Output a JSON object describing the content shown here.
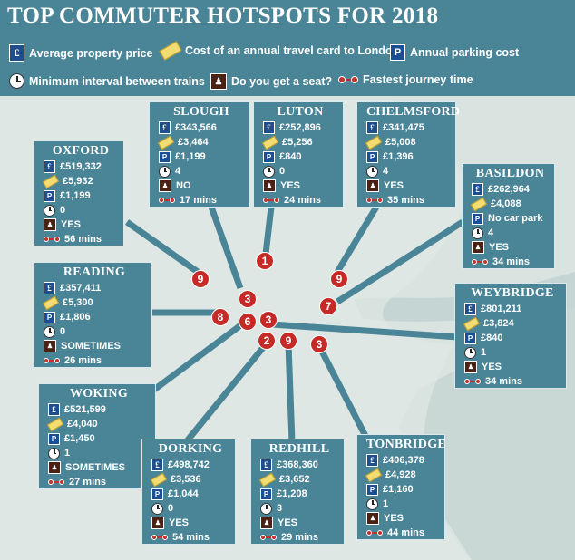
{
  "title": "TOP COMMUTER HOTSPOTS FOR 2018",
  "legend": {
    "property": "Average property price",
    "travelcard": "Cost of an annual travel card to London",
    "parking": "Annual parking cost",
    "interval": "Minimum interval between trains",
    "seat": "Do you get a seat?",
    "journey": "Fastest journey time"
  },
  "colors": {
    "panel": "#4a8597",
    "map": "#d9e4e1",
    "pin": "#c62a26"
  },
  "icons": {
    "property": "pound-icon",
    "travelcard": "ticket-icon",
    "parking": "parking-icon",
    "interval": "clock-icon",
    "seat": "seat-icon",
    "journey": "train-line-icon"
  },
  "towns": [
    {
      "name": "SLOUGH",
      "price": "£343,566",
      "travelcard": "£3,464",
      "parking": "£1,199",
      "interval": "4",
      "seat": "NO",
      "journey": "17 mins"
    },
    {
      "name": "LUTON",
      "price": "£252,896",
      "travelcard": "£5,256",
      "parking": "£840",
      "interval": "0",
      "seat": "YES",
      "journey": "24 mins"
    },
    {
      "name": "CHELMSFORD",
      "price": "£341,475",
      "travelcard": "£5,008",
      "parking": "£1,396",
      "interval": "4",
      "seat": "YES",
      "journey": "35 mins"
    },
    {
      "name": "OXFORD",
      "price": "£519,332",
      "travelcard": "£5,932",
      "parking": "£1,199",
      "interval": "0",
      "seat": "YES",
      "journey": "56 mins"
    },
    {
      "name": "BASILDON",
      "price": "£262,964",
      "travelcard": "£4,088",
      "parking": "No car park",
      "interval": "4",
      "seat": "YES",
      "journey": "34 mins"
    },
    {
      "name": "READING",
      "price": "£357,411",
      "travelcard": "£5,300",
      "parking": "£1,806",
      "interval": "0",
      "seat": "SOMETIMES",
      "journey": "26 mins"
    },
    {
      "name": "WEYBRIDGE",
      "price": "£801,211",
      "travelcard": "£3,824",
      "parking": "£840",
      "interval": "1",
      "seat": "YES",
      "journey": "34 mins"
    },
    {
      "name": "WOKING",
      "price": "£521,599",
      "travelcard": "£4,040",
      "parking": "£1,450",
      "interval": "1",
      "seat": "SOMETIMES",
      "journey": "27 mins"
    },
    {
      "name": "DORKING",
      "price": "£498,742",
      "travelcard": "£3,536",
      "parking": "£1,044",
      "interval": "0",
      "seat": "YES",
      "journey": "54 mins"
    },
    {
      "name": "REDHILL",
      "price": "£368,360",
      "travelcard": "£3,652",
      "parking": "£1,208",
      "interval": "3",
      "seat": "YES",
      "journey": "29 mins"
    },
    {
      "name": "TONBRIDGE",
      "price": "£406,378",
      "travelcard": "£4,928",
      "parking": "£1,160",
      "interval": "1",
      "seat": "YES",
      "journey": "44 mins"
    }
  ],
  "pins": [
    "1",
    "9",
    "9",
    "3",
    "7",
    "8",
    "6",
    "3",
    "2",
    "9",
    "3"
  ]
}
